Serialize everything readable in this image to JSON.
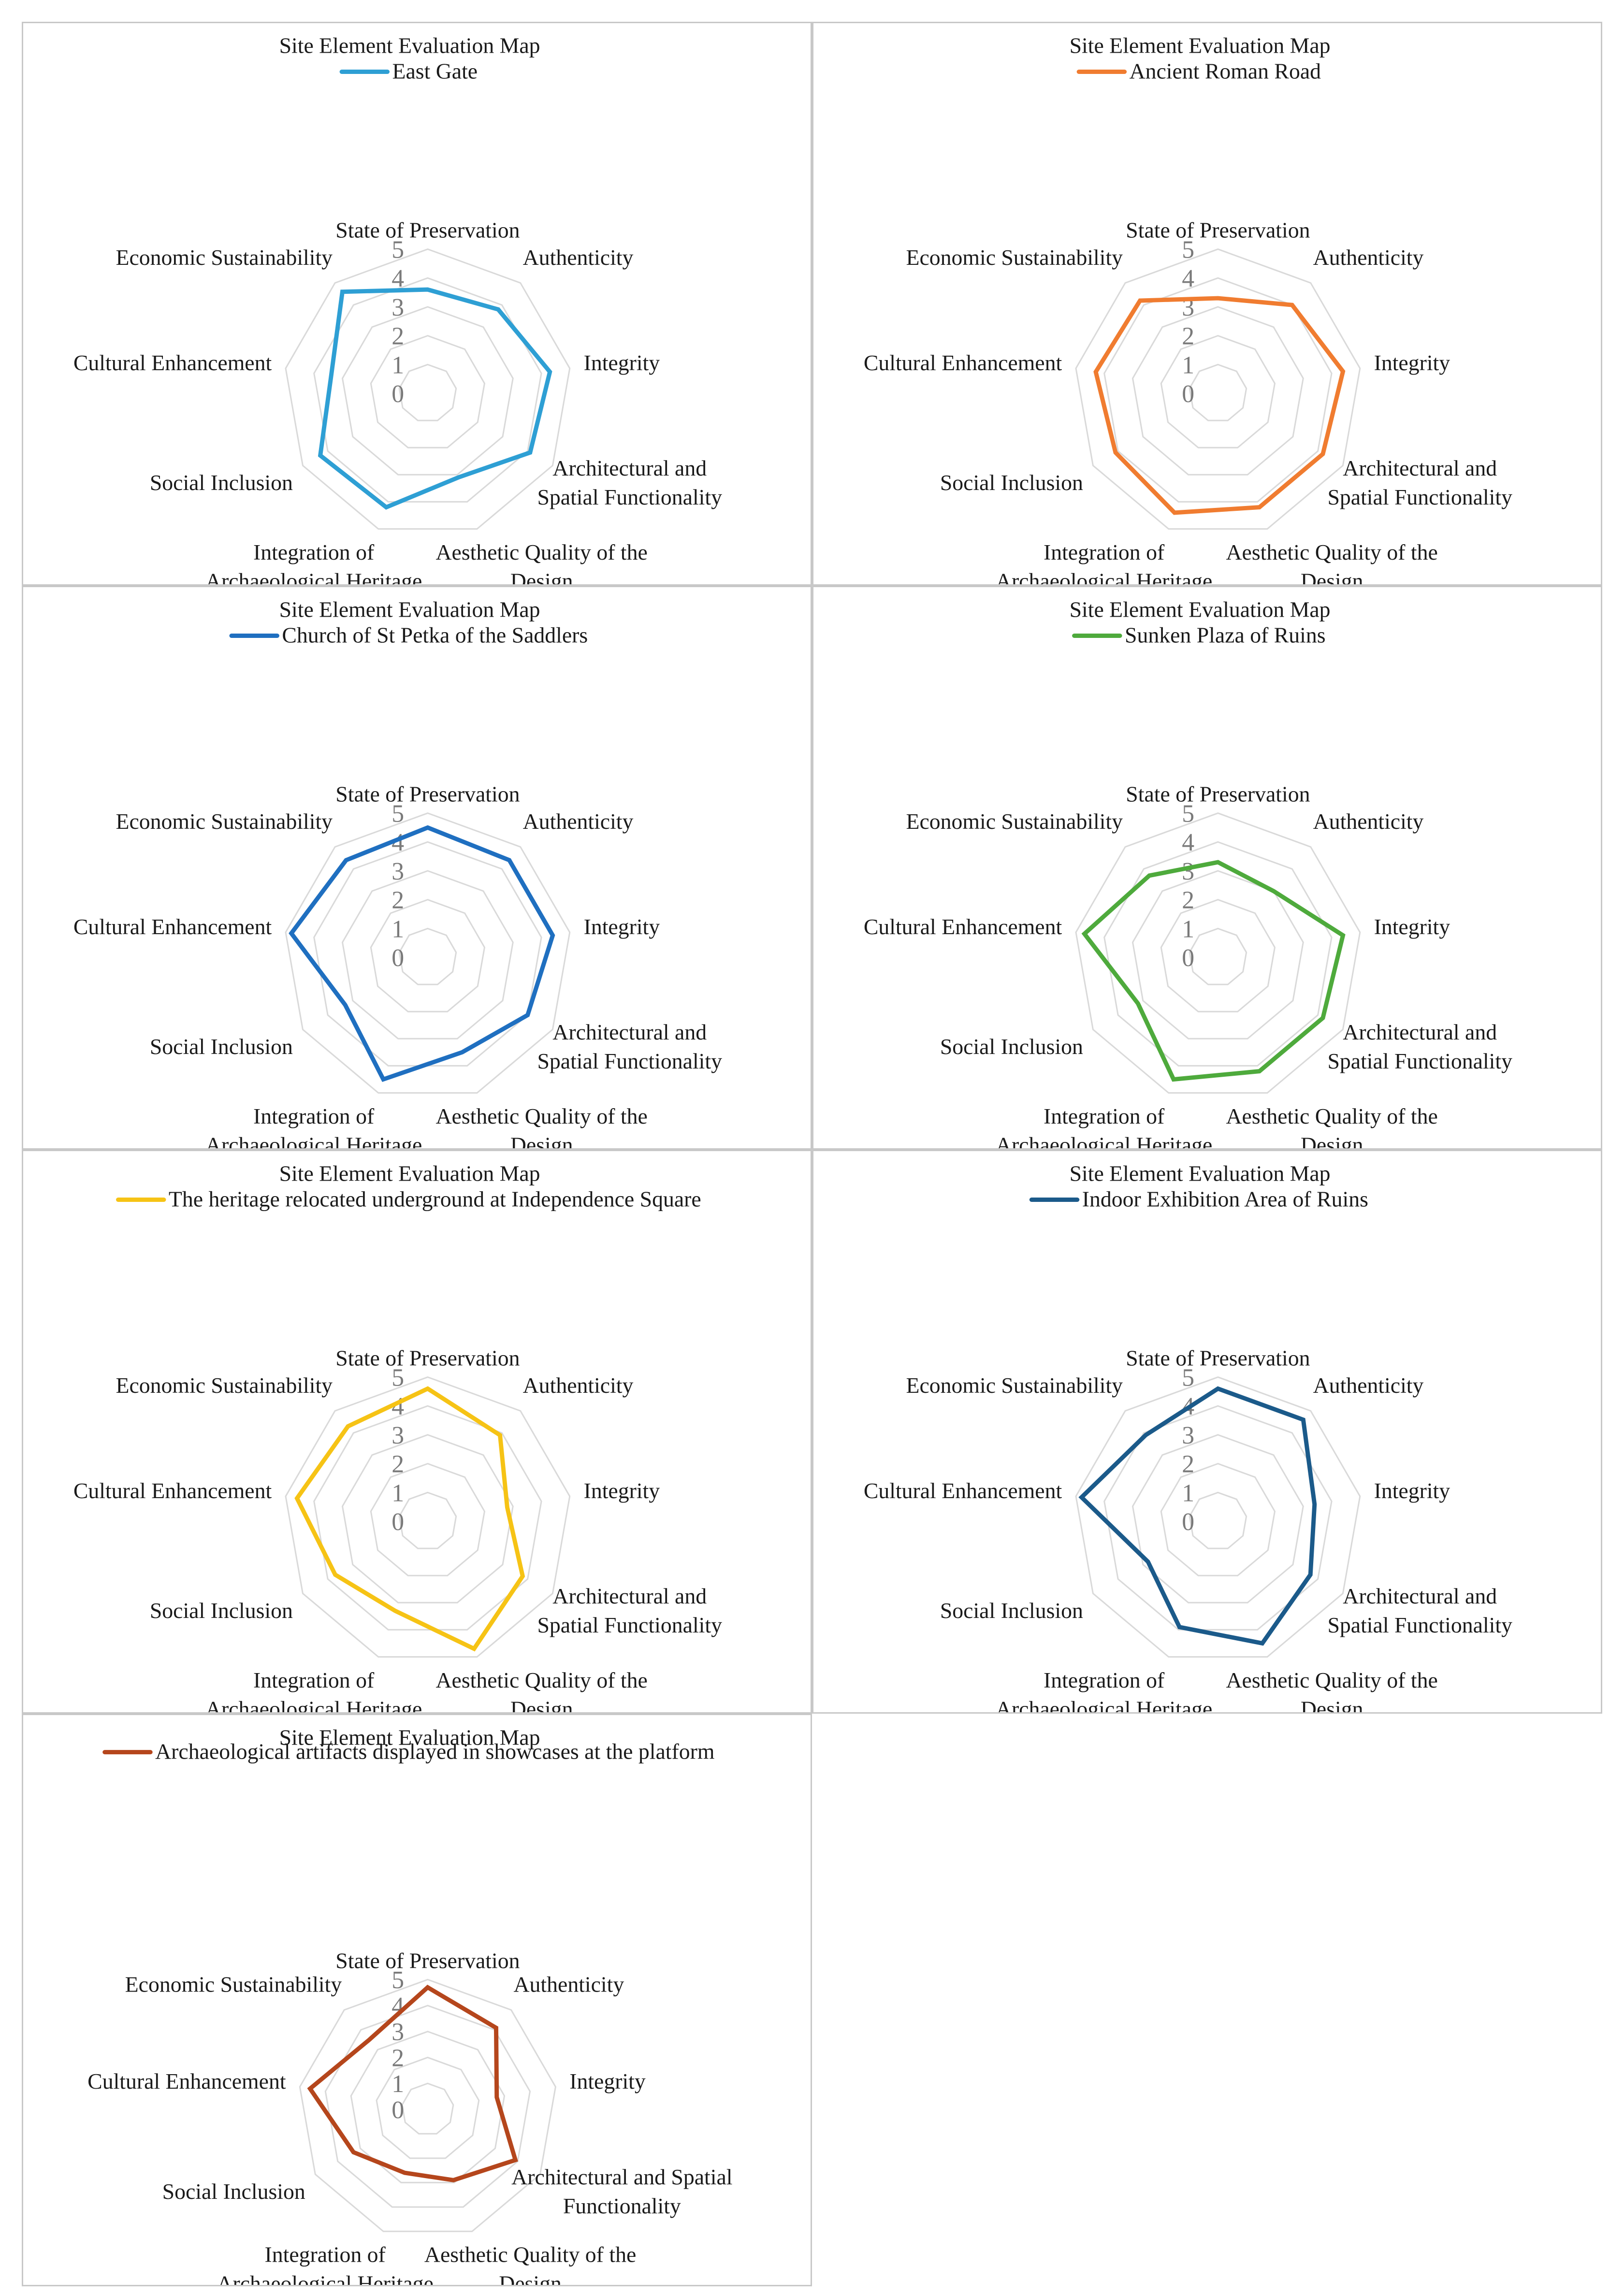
{
  "chart_data": [
    {
      "type": "radar",
      "title": "Site Element Evaluation Map",
      "series": [
        {
          "name": "East Gate",
          "color": "#2E9FD4",
          "values": [
            3.6,
            3.8,
            4.3,
            4.1,
            3.1,
            4.2,
            4.3,
            3.4,
            4.6
          ]
        }
      ],
      "categories": [
        "State of Preservation",
        "Authenticity",
        "Integrity",
        "Architectural and Spatial Functionality",
        "Aesthetic Quality of the Design",
        "Integration of Archaeological Heritage",
        "Social Inclusion",
        "Cultural Enhancement",
        "Economic Sustainability"
      ],
      "axis_labels": [
        [
          "State of Preservation"
        ],
        [
          "Authenticity"
        ],
        [
          "Integrity"
        ],
        [
          "Architectural and",
          "Spatial Functionality"
        ],
        [
          "Aesthetic Quality of the",
          "Design"
        ],
        [
          "Integration of",
          "Archaeological Heritage"
        ],
        [
          "Social Inclusion"
        ],
        [
          "Cultural Enhancement"
        ],
        [
          "Economic Sustainability"
        ]
      ],
      "ylim": [
        0,
        5
      ],
      "ticks": [
        "0",
        "1",
        "2",
        "3",
        "4",
        "5"
      ]
    },
    {
      "type": "radar",
      "title": "Site Element Evaluation Map",
      "series": [
        {
          "name": "Ancient Roman Road",
          "color": "#F07C30",
          "values": [
            3.3,
            4.0,
            4.4,
            4.2,
            4.2,
            4.4,
            4.1,
            4.3,
            4.2
          ]
        }
      ],
      "categories": [
        "State of Preservation",
        "Authenticity",
        "Integrity",
        "Architectural and Spatial Functionality",
        "Aesthetic Quality of the Design",
        "Integration of Archaeological Heritage",
        "Social Inclusion",
        "Cultural Enhancement",
        "Economic Sustainability"
      ],
      "axis_labels": [
        [
          "State of Preservation"
        ],
        [
          "Authenticity"
        ],
        [
          "Integrity"
        ],
        [
          "Architectural and",
          "Spatial Functionality"
        ],
        [
          "Aesthetic Quality of the",
          "Design"
        ],
        [
          "Integration of",
          "Archaeological Heritage"
        ],
        [
          "Social Inclusion"
        ],
        [
          "Cultural Enhancement"
        ],
        [
          "Economic Sustainability"
        ]
      ],
      "ylim": [
        0,
        5
      ],
      "ticks": [
        "0",
        "1",
        "2",
        "3",
        "4",
        "5"
      ]
    },
    {
      "type": "radar",
      "title": "Site Element Evaluation Map",
      "series": [
        {
          "name": "Church of St Petka of the Saddlers",
          "color": "#1F6FC0",
          "values": [
            4.5,
            4.4,
            4.4,
            4.0,
            3.5,
            4.5,
            3.3,
            4.8,
            4.4
          ]
        }
      ],
      "categories": [
        "State of Preservation",
        "Authenticity",
        "Integrity",
        "Architectural and Spatial Functionality",
        "Aesthetic Quality of the Design",
        "Integration of Archaeological Heritage",
        "Social Inclusion",
        "Cultural Enhancement",
        "Economic Sustainability"
      ],
      "axis_labels": [
        [
          "State of Preservation"
        ],
        [
          "Authenticity"
        ],
        [
          "Integrity"
        ],
        [
          "Architectural and",
          "Spatial Functionality"
        ],
        [
          "Aesthetic Quality of the",
          "Design"
        ],
        [
          "Integration of",
          "Archaeological Heritage"
        ],
        [
          "Social Inclusion"
        ],
        [
          "Cultural Enhancement"
        ],
        [
          "Economic Sustainability"
        ]
      ],
      "ylim": [
        0,
        5
      ],
      "ticks": [
        "0",
        "1",
        "2",
        "3",
        "4",
        "5"
      ]
    },
    {
      "type": "radar",
      "title": "Site Element Evaluation Map",
      "series": [
        {
          "name": "Sunken Plaza of Ruins",
          "color": "#4EAA3C",
          "values": [
            3.3,
            3.0,
            4.4,
            4.2,
            4.2,
            4.5,
            3.2,
            4.7,
            3.7
          ]
        }
      ],
      "categories": [
        "State of Preservation",
        "Authenticity",
        "Integrity",
        "Architectural and Spatial Functionality",
        "Aesthetic Quality of the Design",
        "Integration of Archaeological Heritage",
        "Social Inclusion",
        "Cultural Enhancement",
        "Economic Sustainability"
      ],
      "axis_labels": [
        [
          "State of Preservation"
        ],
        [
          "Authenticity"
        ],
        [
          "Integrity"
        ],
        [
          "Architectural and",
          "Spatial Functionality"
        ],
        [
          "Aesthetic Quality of the",
          "Design"
        ],
        [
          "Integration of",
          "Archaeological Heritage"
        ],
        [
          "Social Inclusion"
        ],
        [
          "Cultural Enhancement"
        ],
        [
          "Economic Sustainability"
        ]
      ],
      "ylim": [
        0,
        5
      ],
      "ticks": [
        "0",
        "1",
        "2",
        "3",
        "4",
        "5"
      ]
    },
    {
      "type": "radar",
      "title": "Site Element Evaluation Map",
      "series": [
        {
          "name": "The heritage relocated underground at Independence Square",
          "color": "#F6C315",
          "values": [
            4.6,
            3.9,
            2.8,
            3.8,
            4.7,
            3.3,
            3.7,
            4.6,
            4.3
          ]
        }
      ],
      "categories": [
        "State of Preservation",
        "Authenticity",
        "Integrity",
        "Architectural and Spatial Functionality",
        "Aesthetic Quality of the Design",
        "Integration of Archaeological Heritage",
        "Social Inclusion",
        "Cultural Enhancement",
        "Economic Sustainability"
      ],
      "axis_labels": [
        [
          "State of Preservation"
        ],
        [
          "Authenticity"
        ],
        [
          "Integrity"
        ],
        [
          "Architectural and",
          "Spatial Functionality"
        ],
        [
          "Aesthetic Quality of the",
          "Design"
        ],
        [
          "Integration of",
          "Archaeological Heritage"
        ],
        [
          "Social Inclusion"
        ],
        [
          "Cultural Enhancement"
        ],
        [
          "Economic Sustainability"
        ]
      ],
      "ylim": [
        0,
        5
      ],
      "ticks": [
        "0",
        "1",
        "2",
        "3",
        "4",
        "5"
      ]
    },
    {
      "type": "radar",
      "title": "Site Element Evaluation Map",
      "series": [
        {
          "name": "Indoor Exhibition Area of Ruins",
          "color": "#1B5A8A",
          "values": [
            4.6,
            4.6,
            3.4,
            3.7,
            4.5,
            3.9,
            2.8,
            4.8,
            3.9
          ]
        }
      ],
      "categories": [
        "State of Preservation",
        "Authenticity",
        "Integrity",
        "Architectural and Spatial Functionality",
        "Aesthetic Quality of the Design",
        "Integration of Archaeological Heritage",
        "Social Inclusion",
        "Cultural Enhancement",
        "Economic Sustainability"
      ],
      "axis_labels": [
        [
          "State of Preservation"
        ],
        [
          "Authenticity"
        ],
        [
          "Integrity"
        ],
        [
          "Architectural and",
          "Spatial Functionality"
        ],
        [
          "Aesthetic Quality of the",
          "Design"
        ],
        [
          "Integration of",
          "Archaeological Heritage"
        ],
        [
          "Social Inclusion"
        ],
        [
          "Cultural Enhancement"
        ],
        [
          "Economic Sustainability"
        ]
      ],
      "ylim": [
        0,
        5
      ],
      "ticks": [
        "0",
        "1",
        "2",
        "3",
        "4",
        "5"
      ]
    },
    {
      "type": "radar",
      "title": "Site Element Evaluation Map",
      "series": [
        {
          "name": "Archaeological artifacts displayed in showcases at the platform",
          "color": "#B5461C",
          "values": [
            4.7,
            4.1,
            2.7,
            3.9,
            2.9,
            2.6,
            3.3,
            4.6,
            3.5
          ]
        }
      ],
      "categories": [
        "State of Preservation",
        "Authenticity",
        "Integrity",
        "Architectural and Spatial Functionality",
        "Aesthetic Quality of the Design",
        "Integration of Archaeological Heritage",
        "Social Inclusion",
        "Cultural Enhancement",
        "Economic Sustainability"
      ],
      "axis_labels": [
        [
          "State of Preservation"
        ],
        [
          "Authenticity"
        ],
        [
          "Integrity"
        ],
        [
          "Architectural and Spatial",
          "Functionality"
        ],
        [
          "Aesthetic Quality of the",
          "Design"
        ],
        [
          "Integration of",
          "Archaeological Heritage"
        ],
        [
          "Social Inclusion"
        ],
        [
          "Cultural Enhancement"
        ],
        [
          "Economic Sustainability"
        ]
      ],
      "ylim": [
        0,
        5
      ],
      "ticks": [
        "0",
        "1",
        "2",
        "3",
        "4",
        "5"
      ]
    }
  ]
}
